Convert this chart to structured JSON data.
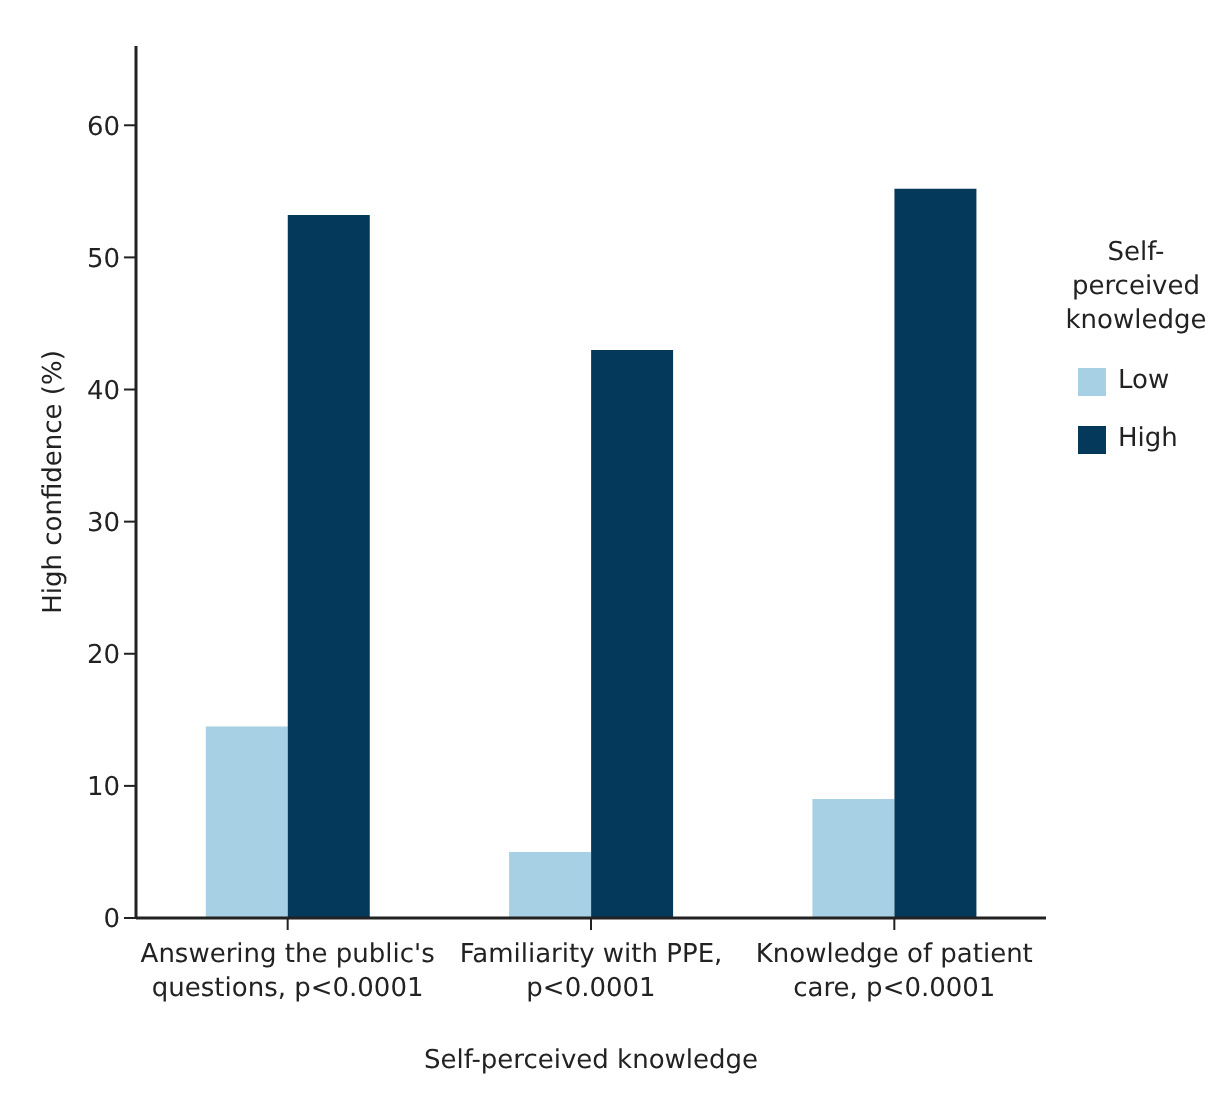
{
  "chart_data": {
    "type": "bar",
    "xlabel": "Self-perceived knowledge",
    "ylabel": "High confidence (%)",
    "legend_title": "Self-perceived knowledge",
    "categories": [
      "Answering the public's questions, p<0.0001",
      "Familiarity with PPE, p<0.0001",
      "Knowledge of patient care, p<0.0001"
    ],
    "series": [
      {
        "name": "Low",
        "color": "#a8d0e4",
        "values": [
          14.5,
          5,
          9
        ]
      },
      {
        "name": "High",
        "color": "#05395c",
        "values": [
          53.2,
          43,
          55.2
        ]
      }
    ],
    "ylim": [
      0,
      66
    ],
    "yticks": [
      0,
      10,
      20,
      30,
      40,
      50,
      60
    ],
    "grid": false,
    "legend": "right"
  }
}
